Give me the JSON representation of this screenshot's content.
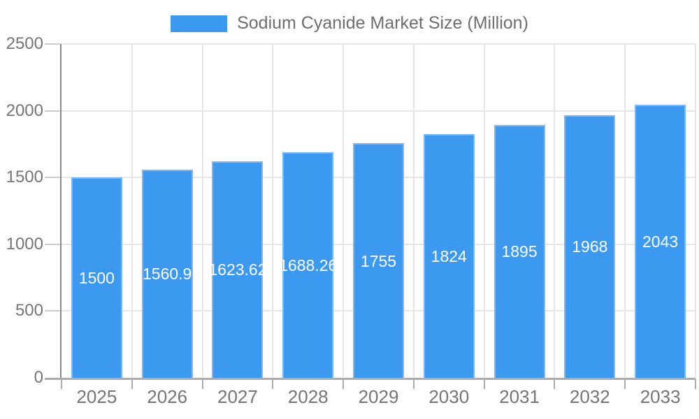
{
  "legend": {
    "label": "Sodium Cyanide Market Size (Million)"
  },
  "colors": {
    "bar_fill": "#3b99f0",
    "bar_border": "#79b7f6",
    "gridline": "#e6e6e6",
    "y_axis_line": "#8a8a8a",
    "x_axis_line": "#acacac",
    "axis_text": "#757575",
    "legend_text": "#6e6e6e",
    "value_label_text": "#ffffff",
    "background": "#ffffff"
  },
  "chart_data": {
    "type": "bar",
    "title": "Sodium Cyanide Market Size (Million)",
    "categories": [
      "2025",
      "2026",
      "2027",
      "2028",
      "2029",
      "2030",
      "2031",
      "2032",
      "2033"
    ],
    "values": [
      1500,
      1560.9,
      1623.62,
      1688.26,
      1755,
      1824,
      1895,
      1968,
      2043
    ],
    "value_labels": [
      "1500",
      "1560.9",
      "1623.62",
      "1688.26",
      "1755",
      "1824",
      "1895",
      "1968",
      "2043"
    ],
    "xlabel": "",
    "ylabel": "",
    "ylim": [
      0,
      2500
    ],
    "yticks": [
      0,
      500,
      1000,
      1500,
      2000,
      2500
    ],
    "grid": true,
    "legend_position": "top"
  }
}
